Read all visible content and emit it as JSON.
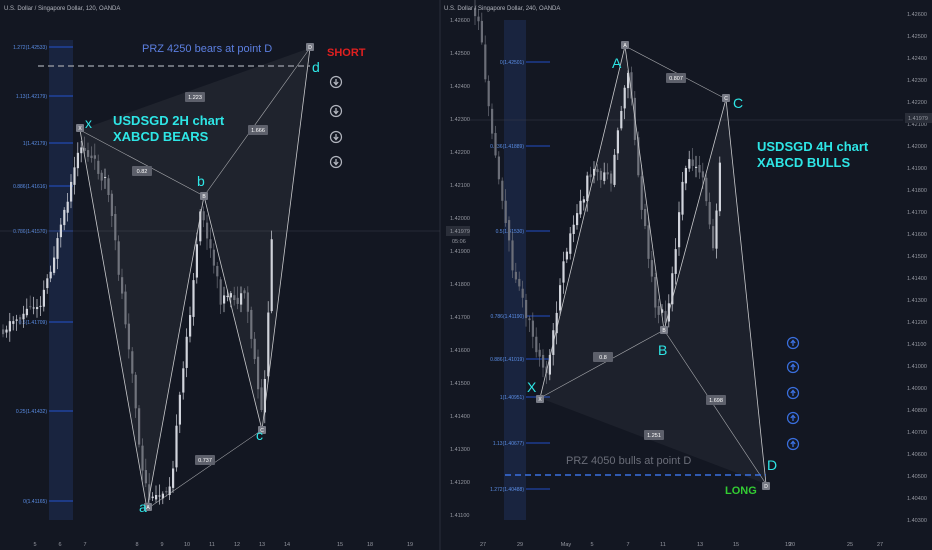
{
  "colors": {
    "bg": "#131722",
    "up": "#d1d4dc",
    "down": "#6b6e78",
    "fib": "#2962ff",
    "pattern": "#c8c9cc",
    "cyan": "#2ee6e6",
    "grid": "#1f2330"
  },
  "left": {
    "header": "U.S. Dollar / Singapore Dollar, 120, OANDA",
    "title_line1": "USDSGD 2H chart",
    "title_line2": "XABCD BEARS",
    "prz": "PRZ 4250 bears at point D",
    "signal": "SHORT",
    "signal_icon": "arrow-down-circle-icon",
    "points": {
      "x": "x",
      "a": "a",
      "b": "b",
      "c": "c",
      "d": "d"
    },
    "point_tags": {
      "a": "A",
      "b": "B",
      "c": "C",
      "d": "D",
      "x": "X"
    },
    "ratios": [
      "1.223",
      "0.82",
      "1.666",
      "0.737"
    ],
    "fib_levels": [
      "1.272(1.42533)",
      "1.13(1.42179)",
      "1(1.42179)",
      "0.886(1.41616)",
      "0.786(1.41570)",
      "0.5(1.41709)",
      "0.25(1.41432)",
      "0(1.41165)"
    ],
    "x_ticks": [
      "5",
      "6",
      "7",
      "8",
      "9",
      "10",
      "11",
      "12",
      "13",
      "14",
      "15",
      "18",
      "19"
    ]
  },
  "right": {
    "header": "U.S. Dollar / Singapore Dollar, 240, OANDA",
    "title_line1": "USDSGD 4H chart",
    "title_line2": "XABCD BULLS",
    "prz": "PRZ 4050 bulls at point D",
    "signal": "LONG",
    "signal_icon": "arrow-up-circle-icon",
    "points": {
      "x": "X",
      "a": "A",
      "b": "B",
      "c": "C",
      "d": "D"
    },
    "point_tags": {
      "a": "A",
      "b": "B",
      "c": "C",
      "d": "D",
      "x": "X"
    },
    "ratios": [
      "0.807",
      "0.8",
      "1.698",
      "1.251"
    ],
    "fib_levels": [
      "0(1.42501)",
      "0.236(1.41889)",
      "0.5(1.41530)",
      "0.786(1.41190)",
      "0.886(1.41019)",
      "1(1.40951)",
      "1.13(1.40677)",
      "1.272(1.40488)"
    ],
    "y_ticks": [
      "1.42600",
      "1.42500",
      "1.42400",
      "1.42300",
      "1.42200",
      "1.42100",
      "1.42000",
      "1.41900",
      "1.41800",
      "1.41700",
      "1.41600",
      "1.41500",
      "1.41400",
      "1.41300",
      "1.41200",
      "1.41100",
      "1.41000",
      "1.40900",
      "1.40800",
      "1.40700",
      "1.40600",
      "1.40500",
      "1.40400",
      "1.40300"
    ],
    "left_y_ticks": [
      "1.42600",
      "1.42500",
      "1.42400",
      "1.42300",
      "1.42200",
      "1.42100",
      "1.42000",
      "1.41900",
      "1.41800",
      "1.41700",
      "1.41600",
      "1.41500",
      "1.41400",
      "1.41300",
      "1.41200",
      "1.41100"
    ],
    "x_ticks": [
      "27",
      "29",
      "May",
      "5",
      "7",
      "11",
      "13",
      "15",
      "19",
      "20",
      "25",
      "27"
    ],
    "price_tag": "1.41979",
    "left_price_tag": "1.41979",
    "left_time_tag": "05:06"
  },
  "chart_data": [
    {
      "type": "line",
      "title": "USDSGD 2H chart",
      "subtitle": "XABCD BEARS",
      "series": [
        {
          "name": "XABCD",
          "x": [
            "X",
            "A",
            "B",
            "C",
            "D"
          ],
          "values": [
            1.422,
            1.4117,
            1.4197,
            1.4132,
            1.4252
          ]
        }
      ]
    },
    {
      "type": "line",
      "title": "USDSGD 4H chart",
      "subtitle": "XABCD BULLS",
      "series": [
        {
          "name": "XABCD",
          "x": [
            "X",
            "A",
            "B",
            "C",
            "D"
          ],
          "values": [
            1.4095,
            1.4255,
            1.4117,
            1.423,
            1.405
          ]
        }
      ]
    }
  ]
}
